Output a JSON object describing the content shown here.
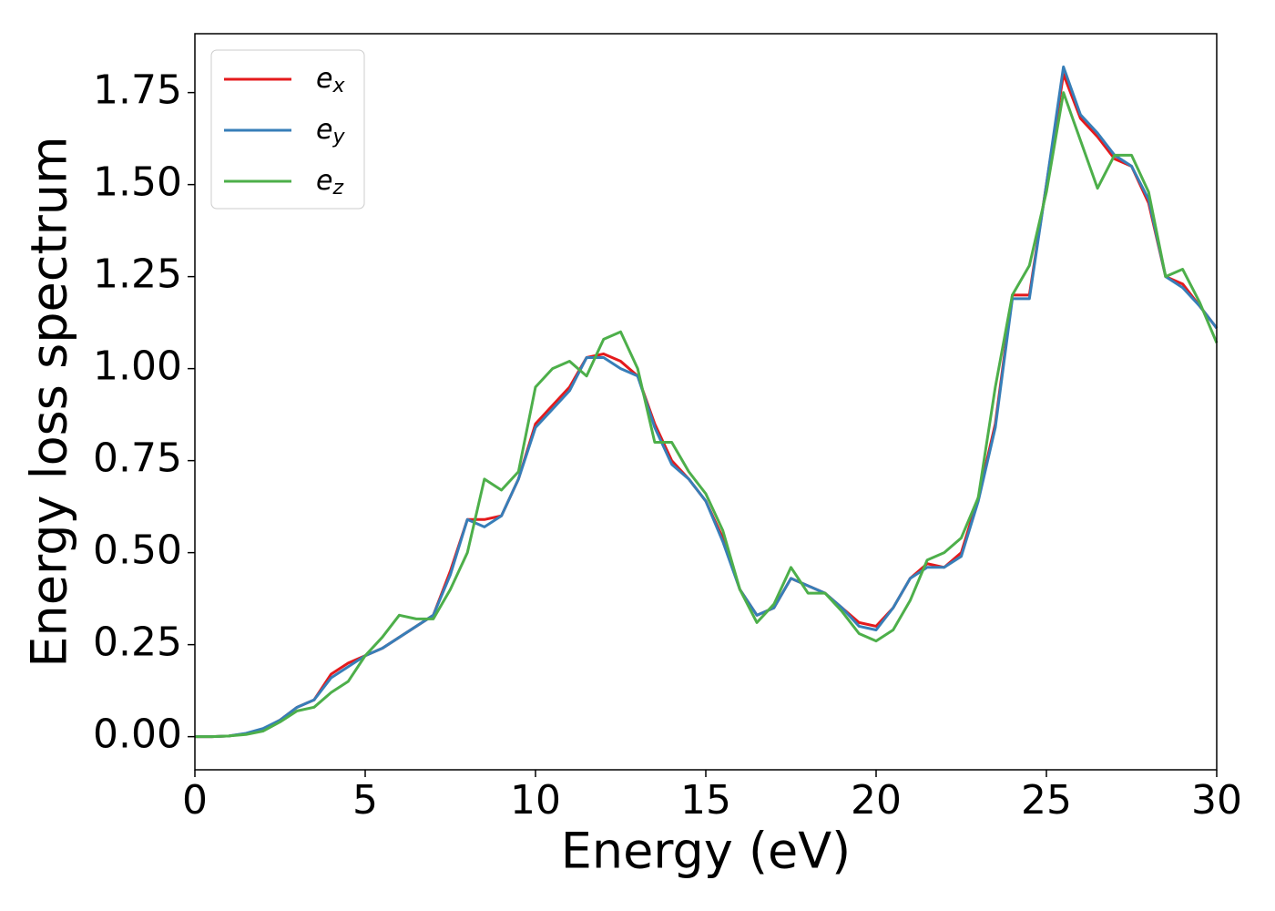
{
  "chart_data": {
    "type": "line",
    "xlabel": "Energy (eV)",
    "ylabel": "Energy loss spectrum",
    "x": [
      0,
      0.5,
      1,
      1.5,
      2,
      2.5,
      3,
      3.5,
      4,
      4.5,
      5,
      5.5,
      6,
      6.5,
      7,
      7.5,
      8,
      8.5,
      9,
      9.5,
      10,
      10.5,
      11,
      11.5,
      12,
      12.5,
      13,
      13.5,
      14,
      14.5,
      15,
      15.5,
      16,
      16.5,
      17,
      17.5,
      18,
      18.5,
      19,
      19.5,
      20,
      20.5,
      21,
      21.5,
      22,
      22.5,
      23,
      23.5,
      24,
      24.5,
      25,
      25.5,
      26,
      26.5,
      27,
      27.5,
      28,
      28.5,
      29,
      29.5,
      30
    ],
    "series": [
      {
        "name": "ex",
        "color": "#e41a1c",
        "values": [
          0,
          0,
          0.002,
          0.008,
          0.02,
          0.045,
          0.08,
          0.1,
          0.17,
          0.2,
          0.22,
          0.24,
          0.27,
          0.3,
          0.33,
          0.45,
          0.59,
          0.59,
          0.6,
          0.7,
          0.85,
          0.9,
          0.95,
          1.03,
          1.04,
          1.02,
          0.98,
          0.85,
          0.75,
          0.7,
          0.64,
          0.54,
          0.4,
          0.33,
          0.35,
          0.43,
          0.41,
          0.39,
          0.35,
          0.31,
          0.3,
          0.35,
          0.43,
          0.47,
          0.46,
          0.5,
          0.65,
          0.85,
          1.2,
          1.2,
          1.5,
          1.8,
          1.68,
          1.63,
          1.57,
          1.55,
          1.45,
          1.25,
          1.23,
          1.17,
          1.11
        ]
      },
      {
        "name": "ey",
        "color": "#377eb8",
        "values": [
          0,
          0,
          0.002,
          0.009,
          0.022,
          0.045,
          0.08,
          0.1,
          0.16,
          0.19,
          0.22,
          0.24,
          0.27,
          0.3,
          0.33,
          0.44,
          0.59,
          0.57,
          0.6,
          0.7,
          0.84,
          0.89,
          0.94,
          1.03,
          1.03,
          1.0,
          0.98,
          0.84,
          0.74,
          0.7,
          0.64,
          0.53,
          0.4,
          0.33,
          0.35,
          0.43,
          0.41,
          0.39,
          0.35,
          0.3,
          0.29,
          0.35,
          0.43,
          0.46,
          0.46,
          0.49,
          0.64,
          0.84,
          1.19,
          1.19,
          1.5,
          1.82,
          1.69,
          1.64,
          1.58,
          1.55,
          1.46,
          1.25,
          1.22,
          1.17,
          1.11
        ]
      },
      {
        "name": "ez",
        "color": "#4daf4a",
        "values": [
          0,
          0,
          0.002,
          0.006,
          0.015,
          0.04,
          0.07,
          0.08,
          0.12,
          0.15,
          0.22,
          0.27,
          0.33,
          0.32,
          0.32,
          0.4,
          0.5,
          0.7,
          0.67,
          0.72,
          0.95,
          1.0,
          1.02,
          0.98,
          1.08,
          1.1,
          1.0,
          0.8,
          0.8,
          0.72,
          0.66,
          0.56,
          0.4,
          0.31,
          0.36,
          0.46,
          0.39,
          0.39,
          0.34,
          0.28,
          0.26,
          0.29,
          0.37,
          0.48,
          0.5,
          0.54,
          0.65,
          0.95,
          1.2,
          1.28,
          1.48,
          1.75,
          1.62,
          1.49,
          1.58,
          1.58,
          1.48,
          1.25,
          1.27,
          1.18,
          1.07
        ]
      }
    ],
    "xlim": [
      0,
      30
    ],
    "xticks": [
      0,
      5,
      10,
      15,
      20,
      25,
      30
    ],
    "ylim": [
      -0.09,
      1.91
    ],
    "yticks": [
      {
        "value": 0,
        "label": "0.00"
      },
      {
        "value": 0.25,
        "label": "0.25"
      },
      {
        "value": 0.5,
        "label": "0.50"
      },
      {
        "value": 0.75,
        "label": "0.75"
      },
      {
        "value": 1,
        "label": "1.00"
      },
      {
        "value": 1.25,
        "label": "1.25"
      },
      {
        "value": 1.5,
        "label": "1.50"
      },
      {
        "value": 1.75,
        "label": "1.75"
      }
    ],
    "legend": "upper left",
    "grid": false
  }
}
